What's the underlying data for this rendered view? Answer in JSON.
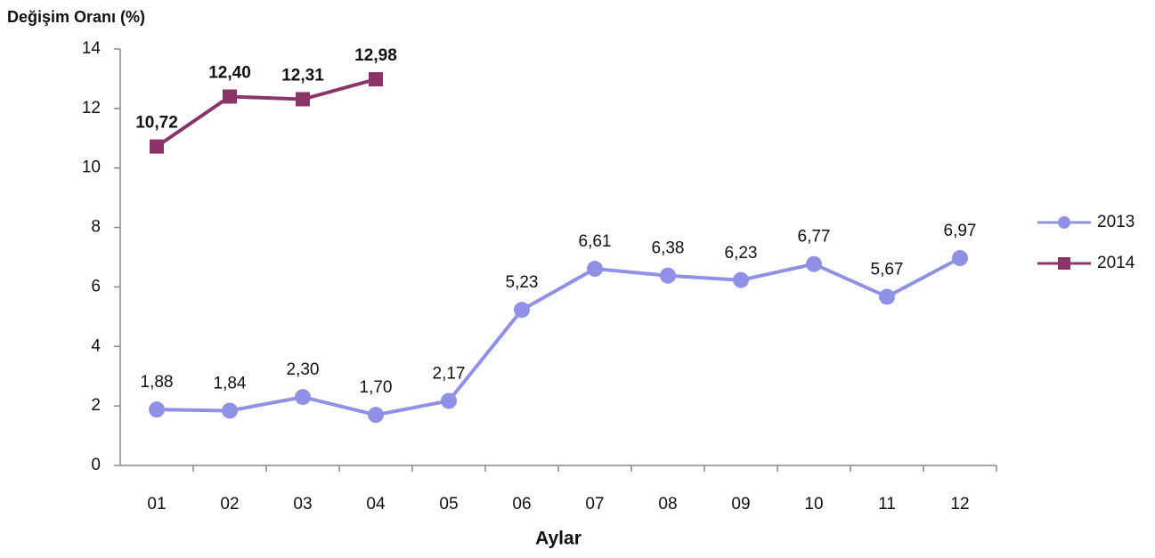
{
  "chart_data": {
    "type": "line",
    "title": "Değişim Oranı (%)",
    "x_label": "Aylar",
    "categories": [
      "01",
      "02",
      "03",
      "04",
      "05",
      "06",
      "07",
      "08",
      "09",
      "10",
      "11",
      "12"
    ],
    "series": [
      {
        "name": "2013",
        "color": "#8f90e6",
        "marker": "circle",
        "values": [
          1.88,
          1.84,
          2.3,
          1.7,
          2.17,
          5.23,
          6.61,
          6.38,
          6.23,
          6.77,
          5.67,
          6.97
        ],
        "value_labels": [
          "1,88",
          "1,84",
          "2,30",
          "1,70",
          "2,17",
          "5,23",
          "6,61",
          "6,38",
          "6,23",
          "6,77",
          "5,67",
          "6,97"
        ]
      },
      {
        "name": "2014",
        "color": "#8b3468",
        "marker": "square",
        "values": [
          10.72,
          12.4,
          12.31,
          12.98,
          null,
          null,
          null,
          null,
          null,
          null,
          null,
          null
        ],
        "value_labels": [
          "10,72",
          "12,40",
          "12,31",
          "12,98",
          null,
          null,
          null,
          null,
          null,
          null,
          null,
          null
        ]
      }
    ],
    "ylim": [
      0,
      14
    ],
    "yticks": [
      0,
      2,
      4,
      6,
      8,
      10,
      12,
      14
    ],
    "grid": false,
    "legend": "right"
  }
}
